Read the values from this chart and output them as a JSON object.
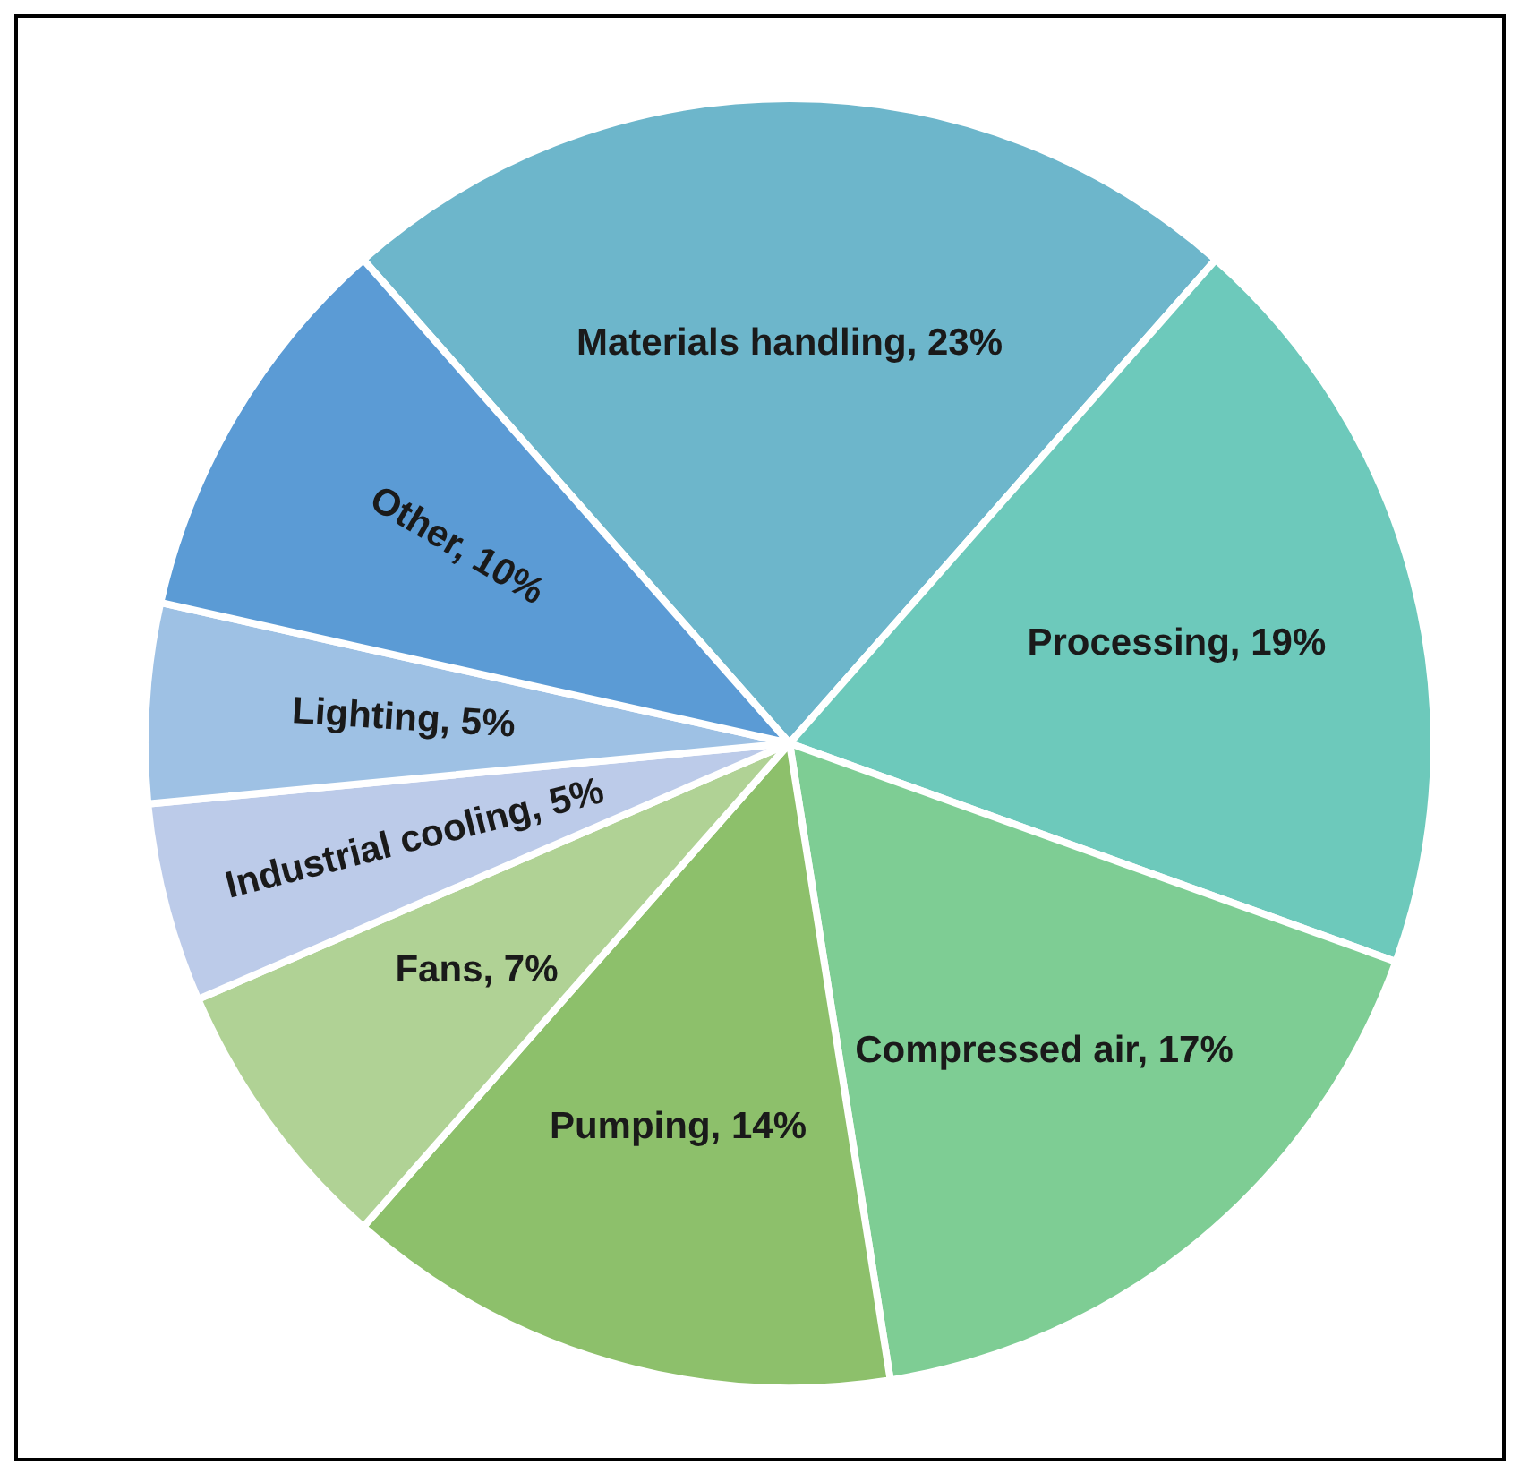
{
  "chart_data": {
    "type": "pie",
    "categories": [
      "Materials handling",
      "Processing",
      "Compressed air",
      "Pumping",
      "Fans",
      "Industrial cooling",
      "Lighting",
      "Other"
    ],
    "values": [
      23,
      19,
      17,
      14,
      7,
      5,
      5,
      10
    ],
    "value_labels": [
      "23%",
      "19%",
      "17%",
      "14%",
      "7%",
      "5%",
      "5%",
      "10%"
    ],
    "colors": [
      "#6db6cb",
      "#6dc9bb",
      "#7ecd94",
      "#8dc06b",
      "#b0d295",
      "#bccbe9",
      "#9ec1e4",
      "#5b9bd5"
    ]
  }
}
